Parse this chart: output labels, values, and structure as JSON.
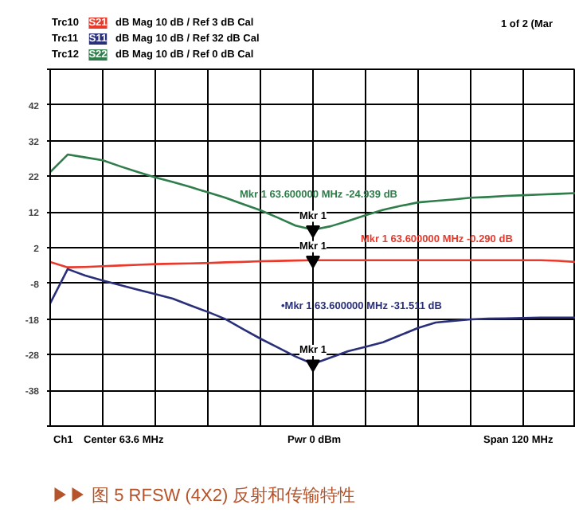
{
  "chart_data": {
    "type": "line",
    "title": "▶▶ 图 5 RFSW (4X2) 反射和传输特性",
    "categories": [
      null,
      null,
      null,
      null,
      null,
      null,
      null,
      null,
      null,
      null,
      null,
      null,
      null,
      null,
      null,
      null,
      null,
      null,
      null,
      null,
      null,
      null,
      null,
      null,
      null,
      null,
      null,
      null,
      null,
      null,
      null
    ],
    "ylim": [
      -48,
      52
    ],
    "yticks": [
      {
        "value": 52,
        "label": null
      },
      42,
      32,
      22,
      12,
      2,
      -8,
      -18,
      -28,
      -38,
      {
        "value": -48,
        "label": null
      }
    ],
    "tick_labels": "y",
    "grid": true,
    "legend": "top",
    "line_style": "solid",
    "marker": "none",
    "series": [
      {
        "name": "S21",
        "color": "#e8392b",
        "values": [
          -2.0,
          -3.5,
          -3.4,
          -3.2,
          -3.0,
          -2.8,
          -2.6,
          -2.5,
          -2.4,
          -2.3,
          -2.1,
          -2.0,
          -1.8,
          -1.7,
          -1.6,
          -1.5,
          -1.5,
          -1.5,
          -1.5,
          -1.5,
          -1.5,
          -1.5,
          -1.5,
          -1.5,
          -1.5,
          -1.5,
          -1.5,
          -1.5,
          -1.5,
          -1.7,
          -2.0
        ]
      },
      {
        "name": "S11",
        "color": "#2a2f7a",
        "values": [
          -13.6,
          -4.0,
          -5.8,
          -7.2,
          -8.5,
          -9.8,
          -11.0,
          -12.3,
          -14.2,
          -16.0,
          -18.0,
          -20.8,
          -23.5,
          -26.0,
          -28.5,
          -30.6,
          -28.8,
          -27.0,
          -25.8,
          -24.5,
          -22.5,
          -20.5,
          -19.0,
          -18.5,
          -18.1,
          -17.9,
          -17.8,
          -17.7,
          -17.6,
          -17.6,
          -17.6
        ]
      },
      {
        "name": "S22",
        "color": "#2e7d4a",
        "values": [
          23.2,
          28.1,
          27.3,
          26.5,
          24.8,
          23.2,
          21.7,
          20.4,
          19.0,
          17.5,
          16.0,
          14.2,
          12.5,
          10.4,
          8.2,
          7.0,
          8.0,
          9.5,
          11.1,
          12.6,
          13.7,
          14.7,
          15.1,
          15.5,
          16.0,
          16.2,
          16.5,
          16.7,
          16.9,
          17.1,
          17.3
        ]
      }
    ],
    "annotations": [
      "Trc10",
      "Trc11",
      "Trc12",
      "dB Mag  10 dB / Ref 3 dB      Cal",
      "dB Mag  10 dB / Ref 32 dB    Cal",
      "dB Mag  10 dB / Ref 0 dB      Cal",
      "1 of 2 (Mar",
      "Mkr 1  63.600000 MHz  -24.939 dB",
      "Mkr 1  63.600000 MHz   -0.290 dB",
      "•Mkr 1  63.600000 MHz  -31.511 dB",
      "Ch1",
      "Center 63.6 MHz",
      "Pwr 0 dBm",
      "Span 120 MHz",
      {
        "text": "Mkr 1",
        "y": 7.0
      },
      {
        "text": "Mkr 1",
        "y": -1.5
      },
      {
        "text": "Mkr 1",
        "y": -30.6
      }
    ]
  }
}
